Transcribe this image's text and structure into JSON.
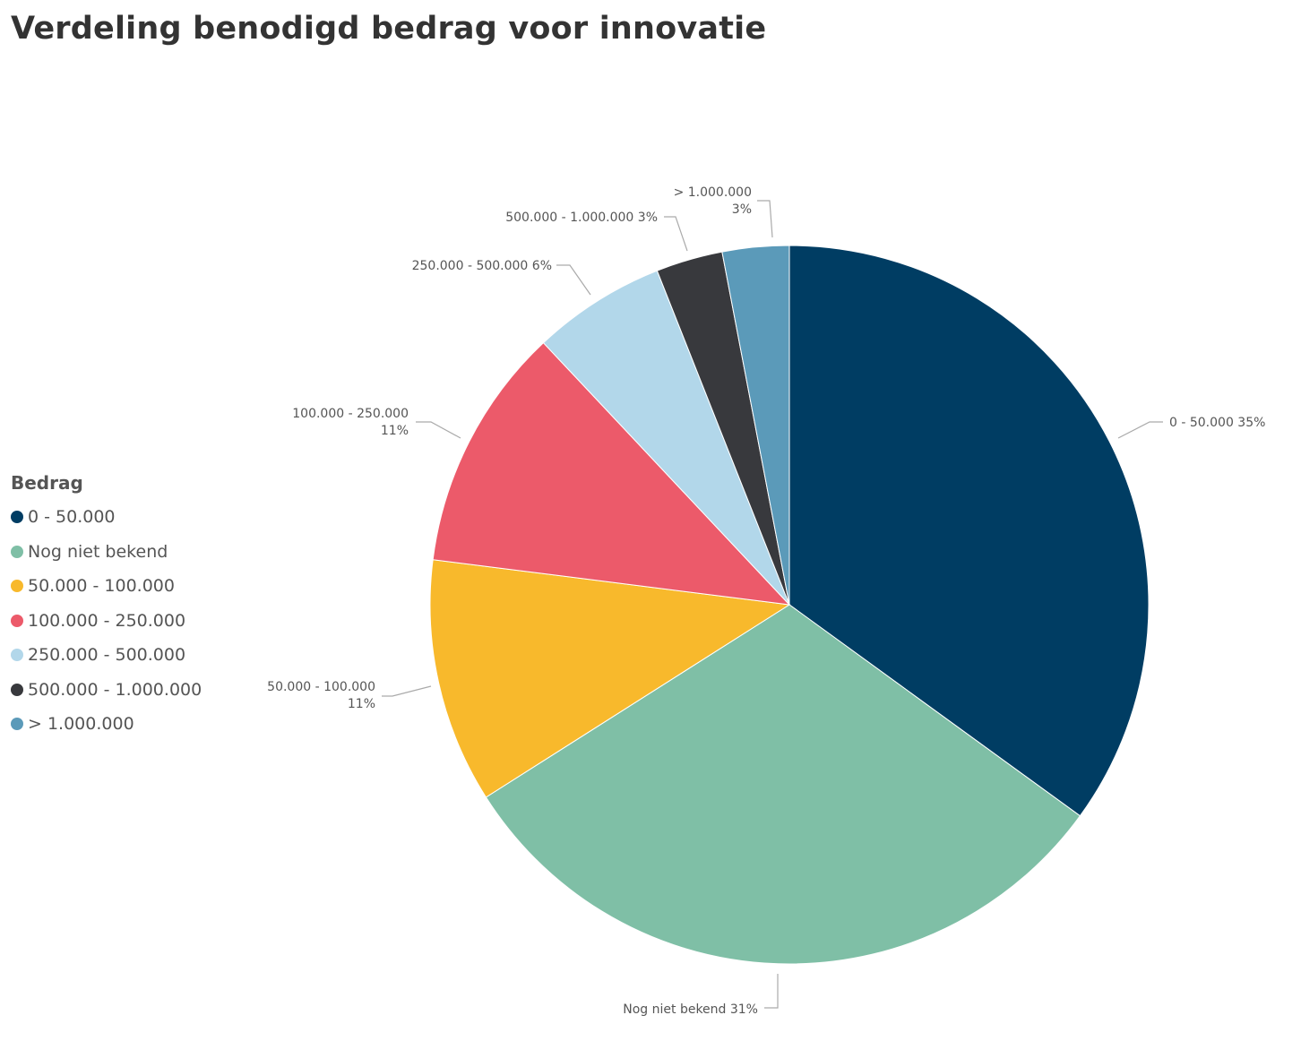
{
  "chart_data": {
    "type": "pie",
    "title": "Verdeling benodigd bedrag voor innovatie",
    "legend_title": "Bedrag",
    "legend_position": "left",
    "slices": [
      {
        "name": "0 - 50.000",
        "percent": 35,
        "color": "#003D63",
        "label_lines": [
          "0 - 50.000 35%"
        ]
      },
      {
        "name": "Nog niet bekend",
        "percent": 31,
        "color": "#7FBFA6",
        "label_lines": [
          "Nog niet bekend 31%"
        ]
      },
      {
        "name": "50.000 - 100.000",
        "percent": 11,
        "color": "#F8B92C",
        "label_lines": [
          "50.000 - 100.000",
          "11%"
        ]
      },
      {
        "name": "100.000 - 250.000",
        "percent": 11,
        "color": "#EC5A6A",
        "label_lines": [
          "100.000 - 250.000",
          "11%"
        ]
      },
      {
        "name": "250.000 - 500.000",
        "percent": 6,
        "color": "#B2D7EA",
        "label_lines": [
          "250.000 - 500.000 6%"
        ]
      },
      {
        "name": "500.000 - 1.000.000",
        "percent": 3,
        "color": "#38393D",
        "label_lines": [
          "500.000 - 1.000.000 3%"
        ]
      },
      {
        "name": "> 1.000.000",
        "percent": 3,
        "color": "#5B9AB9",
        "label_lines": [
          "> 1.000.000",
          "3%"
        ]
      }
    ]
  }
}
